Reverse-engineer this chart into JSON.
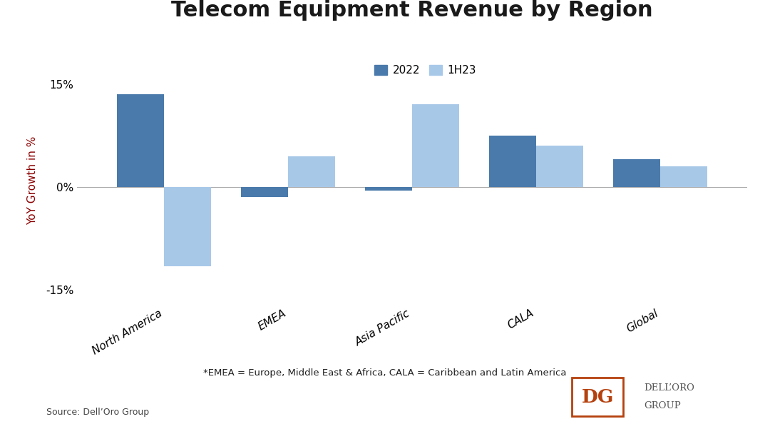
{
  "title": "Telecom Equipment Revenue by Region",
  "categories": [
    "North America",
    "EMEA",
    "Asia Pacific",
    "CALA",
    "Global"
  ],
  "values_2022": [
    13.5,
    -1.5,
    -0.5,
    7.5,
    4.0
  ],
  "values_1h23": [
    -11.5,
    4.5,
    12.0,
    6.0,
    3.0
  ],
  "color_2022": "#4a7aab",
  "color_1h23": "#a8c8e8",
  "ylabel": "YoY Growth in %",
  "ylabel_color": "#8b0000",
  "yticks": [
    -15,
    0,
    15
  ],
  "ylim": [
    -17,
    19
  ],
  "legend_labels": [
    "2022",
    "1H23"
  ],
  "footnote": "*EMEA = Europe, Middle East & Africa, CALA = Caribbean and Latin America",
  "source": "Source: Dell’Oro Group",
  "background_color": "#ffffff",
  "title_fontsize": 22,
  "axis_label_fontsize": 11,
  "tick_fontsize": 11,
  "legend_fontsize": 11,
  "footnote_fontsize": 9.5,
  "source_fontsize": 9,
  "bar_width": 0.38,
  "logo_color": "#b5410e",
  "logo_text_color": "#555555"
}
